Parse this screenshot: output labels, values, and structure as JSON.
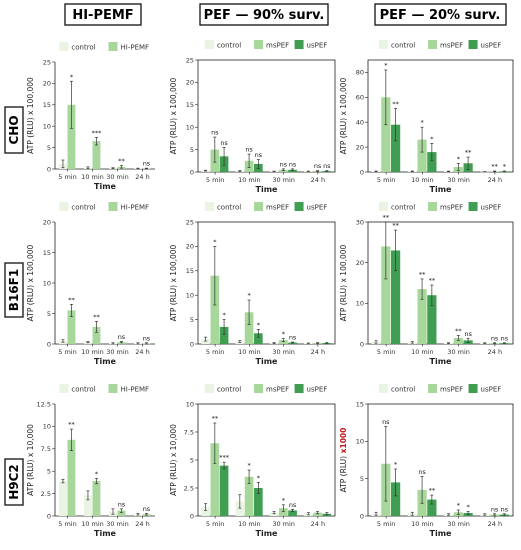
{
  "columns": [
    "HI-PEMF",
    "PEF — 90% surv.",
    "PEF — 20% surv."
  ],
  "rows": [
    "CHO",
    "B16F1",
    "H9C2"
  ],
  "colors": {
    "control": "#e9f4e3",
    "HI-PEMF": "#a7d79a",
    "msPEF": "#a7d79a",
    "usPEF": "#3f9e51"
  },
  "chart_data": [
    {
      "type": "bar",
      "row": "CHO",
      "column": "HI-PEMF",
      "categories": [
        "5 min",
        "10 min",
        "30 min",
        "24 h"
      ],
      "xlabel": "Time",
      "ylabel_main": "ATP (RLU)",
      "ylabel_scale": " x 100,000",
      "ylabel_scale_red": "",
      "ylim": [
        0,
        25
      ],
      "yticks": [
        0,
        5,
        10,
        15,
        20,
        25
      ],
      "series": [
        {
          "name": "control",
          "values": [
            1.2,
            0.3,
            0.2,
            0.1
          ],
          "errors": [
            0.9,
            0.2,
            0.1,
            0.1
          ],
          "sig": [
            "",
            "",
            "",
            ""
          ]
        },
        {
          "name": "HI-PEMF",
          "values": [
            15,
            6.5,
            0.5,
            0.1
          ],
          "errors": [
            5.5,
            0.9,
            0.3,
            0.1
          ],
          "sig": [
            "*",
            "***",
            "**",
            "ns"
          ]
        }
      ]
    },
    {
      "type": "bar",
      "row": "CHO",
      "column": "PEF — 90% surv.",
      "categories": [
        "5 min",
        "10 min",
        "30 min",
        "24 h"
      ],
      "xlabel": "Time",
      "ylabel_main": "ATP (RLU)",
      "ylabel_scale": " x 100,000",
      "ylabel_scale_red": "",
      "ylim": [
        0,
        25
      ],
      "yticks": [
        0,
        5,
        10,
        15,
        20,
        25
      ],
      "series": [
        {
          "name": "control",
          "values": [
            0.3,
            0.2,
            0.1,
            0.1
          ],
          "errors": [
            0.1,
            0.1,
            0.1,
            0.1
          ],
          "sig": [
            "",
            "",
            "",
            ""
          ]
        },
        {
          "name": "msPEF",
          "values": [
            5,
            2.5,
            0.5,
            0.2
          ],
          "errors": [
            2.8,
            1.5,
            0.2,
            0.1
          ],
          "sig": [
            "ns",
            "ns",
            "ns",
            "ns"
          ]
        },
        {
          "name": "usPEF",
          "values": [
            3.5,
            1.8,
            0.5,
            0.2
          ],
          "errors": [
            2.0,
            1.0,
            0.2,
            0.1
          ],
          "sig": [
            "ns",
            "ns",
            "ns",
            "ns"
          ]
        }
      ]
    },
    {
      "type": "bar",
      "row": "CHO",
      "column": "PEF — 20% surv.",
      "categories": [
        "5 min",
        "10 min",
        "30 min",
        "24 h"
      ],
      "xlabel": "Time",
      "ylabel_main": "ATP (RLU)",
      "ylabel_scale": " x 100,000",
      "ylabel_scale_red": "",
      "ylim": [
        0,
        90
      ],
      "yticks": [
        0,
        20,
        40,
        60,
        80
      ],
      "series": [
        {
          "name": "control",
          "values": [
            0.5,
            0.5,
            0.5,
            0.2
          ],
          "errors": [
            0.3,
            0.3,
            0.2,
            0.1
          ],
          "sig": [
            "",
            "",
            "",
            ""
          ]
        },
        {
          "name": "msPEF",
          "values": [
            60,
            26,
            4,
            0.5
          ],
          "errors": [
            22,
            10,
            3,
            0.3
          ],
          "sig": [
            "*",
            "*",
            "*",
            "**"
          ]
        },
        {
          "name": "usPEF",
          "values": [
            38,
            16,
            7,
            0.5
          ],
          "errors": [
            13,
            7,
            5,
            0.3
          ],
          "sig": [
            "**",
            "*",
            "**",
            "*"
          ]
        }
      ]
    },
    {
      "type": "bar",
      "row": "B16F1",
      "column": "HI-PEMF",
      "categories": [
        "5 min",
        "10 min",
        "30 min",
        "24 h"
      ],
      "xlabel": "Time",
      "ylabel_main": "ATP (RLU)",
      "ylabel_scale": " x 100,000",
      "ylabel_scale_red": "",
      "ylim": [
        0,
        20
      ],
      "yticks": [
        0,
        5,
        10,
        15,
        20
      ],
      "series": [
        {
          "name": "control",
          "values": [
            0.5,
            0.3,
            0.1,
            0.1
          ],
          "errors": [
            0.2,
            0.1,
            0.1,
            0.1
          ],
          "sig": [
            "",
            "",
            "",
            ""
          ]
        },
        {
          "name": "HI-PEMF",
          "values": [
            5.5,
            2.8,
            0.3,
            0.1
          ],
          "errors": [
            1.0,
            0.9,
            0.1,
            0.1
          ],
          "sig": [
            "**",
            "**",
            "ns",
            "ns"
          ]
        }
      ]
    },
    {
      "type": "bar",
      "row": "B16F1",
      "column": "PEF — 90% surv.",
      "categories": [
        "5 min",
        "10 min",
        "30 min",
        "24 h"
      ],
      "xlabel": "Time",
      "ylabel_main": "ATP (RLU)",
      "ylabel_scale": " x 100,000",
      "ylabel_scale_red": "",
      "ylim": [
        0,
        25
      ],
      "yticks": [
        0,
        5,
        10,
        15,
        20,
        25
      ],
      "series": [
        {
          "name": "control",
          "values": [
            1,
            0.5,
            0.2,
            0.1
          ],
          "errors": [
            0.4,
            0.2,
            0.1,
            0.1
          ],
          "sig": [
            "",
            "",
            "",
            ""
          ]
        },
        {
          "name": "msPEF",
          "values": [
            14,
            6.5,
            0.8,
            0.2
          ],
          "errors": [
            6,
            2.5,
            0.3,
            0.1
          ],
          "sig": [
            "*",
            "*",
            "*",
            ""
          ]
        },
        {
          "name": "usPEF",
          "values": [
            3.5,
            2.2,
            0.3,
            0.2
          ],
          "errors": [
            1.5,
            0.8,
            0.1,
            0.1
          ],
          "sig": [
            "*",
            "*",
            "ns",
            ""
          ]
        }
      ]
    },
    {
      "type": "bar",
      "row": "B16F1",
      "column": "PEF — 20% surv.",
      "categories": [
        "5 min",
        "10 min",
        "30 min",
        "24 h"
      ],
      "xlabel": "Time",
      "ylabel_main": "ATP (RLU)",
      "ylabel_scale": " x 100,000",
      "ylabel_scale_red": "",
      "ylim": [
        0,
        30
      ],
      "yticks": [
        0,
        10,
        20,
        30
      ],
      "series": [
        {
          "name": "control",
          "values": [
            0.5,
            0.4,
            0.2,
            0.2
          ],
          "errors": [
            0.3,
            0.2,
            0.1,
            0.1
          ],
          "sig": [
            "",
            "",
            "",
            ""
          ]
        },
        {
          "name": "msPEF",
          "values": [
            24,
            13.5,
            1.5,
            0.2
          ],
          "errors": [
            8,
            2.5,
            0.6,
            0.1
          ],
          "sig": [
            "**",
            "**",
            "**",
            "ns"
          ]
        },
        {
          "name": "usPEF",
          "values": [
            23,
            12,
            0.9,
            0.2
          ],
          "errors": [
            5,
            2.5,
            0.5,
            0.1
          ],
          "sig": [
            "**",
            "**",
            "ns",
            "ns"
          ]
        }
      ]
    },
    {
      "type": "bar",
      "row": "H9C2",
      "column": "HI-PEMF",
      "categories": [
        "5 min",
        "10 min",
        "30 min",
        "24 h"
      ],
      "xlabel": "Time",
      "ylabel_main": "ATP (RLU)",
      "ylabel_scale": " x 10,000",
      "ylabel_scale_red": "",
      "ylim": [
        0,
        12.5
      ],
      "yticks": [
        0,
        2.5,
        5,
        7.5,
        10,
        12.5
      ],
      "series": [
        {
          "name": "control",
          "values": [
            3.9,
            2.3,
            0.5,
            0.2
          ],
          "errors": [
            0.2,
            0.5,
            0.3,
            0.1
          ],
          "sig": [
            "",
            "",
            "",
            ""
          ]
        },
        {
          "name": "HI-PEMF",
          "values": [
            8.5,
            3.9,
            0.6,
            0.2
          ],
          "errors": [
            1.2,
            0.3,
            0.2,
            0.1
          ],
          "sig": [
            "**",
            "*",
            "ns",
            "ns"
          ]
        }
      ]
    },
    {
      "type": "bar",
      "row": "H9C2",
      "column": "PEF — 90% surv.",
      "categories": [
        "5 min",
        "10 min",
        "30 min",
        "24 h"
      ],
      "xlabel": "Time",
      "ylabel_main": "ATP (RLU)",
      "ylabel_scale": " x 10,000",
      "ylabel_scale_red": "",
      "ylim": [
        0,
        10
      ],
      "yticks": [
        0,
        2.5,
        5,
        7.5,
        10
      ],
      "series": [
        {
          "name": "control",
          "values": [
            0.8,
            1.3,
            0.3,
            0.2
          ],
          "errors": [
            0.3,
            0.6,
            0.1,
            0.1
          ],
          "sig": [
            "",
            "",
            "",
            ""
          ]
        },
        {
          "name": "msPEF",
          "values": [
            6.5,
            3.5,
            0.7,
            0.3
          ],
          "errors": [
            1.8,
            0.6,
            0.3,
            0.1
          ],
          "sig": [
            "**",
            "*",
            "*",
            ""
          ]
        },
        {
          "name": "usPEF",
          "values": [
            4.5,
            2.5,
            0.5,
            0.2
          ],
          "errors": [
            0.3,
            0.5,
            0.1,
            0.1
          ],
          "sig": [
            "***",
            "*",
            "ns",
            ""
          ]
        }
      ]
    },
    {
      "type": "bar",
      "row": "H9C2",
      "column": "PEF — 20% surv.",
      "categories": [
        "5 min",
        "10 min",
        "30 min",
        "24 h"
      ],
      "xlabel": "Time",
      "ylabel_main": "ATP (RLU)",
      "ylabel_scale": "",
      "ylabel_scale_red": "x1000",
      "ylim": [
        0,
        15
      ],
      "yticks": [
        0,
        5,
        10,
        15
      ],
      "series": [
        {
          "name": "control",
          "values": [
            0.3,
            0.3,
            0.2,
            0.2
          ],
          "errors": [
            0.2,
            0.2,
            0.1,
            0.1
          ],
          "sig": [
            "",
            "",
            "",
            ""
          ]
        },
        {
          "name": "msPEF",
          "values": [
            7,
            3.5,
            0.5,
            0.2
          ],
          "errors": [
            5,
            1.8,
            0.3,
            0.1
          ],
          "sig": [
            "ns",
            "ns",
            "*",
            "ns"
          ]
        },
        {
          "name": "usPEF",
          "values": [
            4.5,
            2.2,
            0.4,
            0.2
          ],
          "errors": [
            1.8,
            0.6,
            0.2,
            0.1
          ],
          "sig": [
            "*",
            "**",
            "*",
            "ns"
          ]
        }
      ]
    }
  ]
}
